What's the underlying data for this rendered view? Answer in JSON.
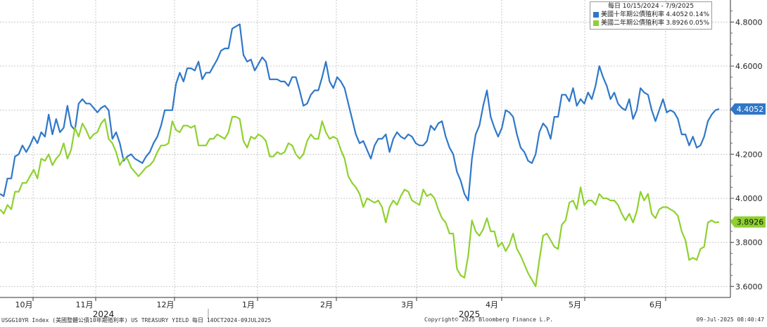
{
  "chart_data": {
    "type": "line",
    "legend_header": "每日 10/15/2024 - 7/9/2025",
    "x_axis": {
      "months": [
        "10月",
        "11月",
        "12月",
        "1月",
        "2月",
        "3月",
        "4月",
        "5月",
        "6月"
      ],
      "years": [
        "2024",
        "2025"
      ]
    },
    "y_axis": {
      "ticks": [
        "3.6000",
        "3.8000",
        "4.0000",
        "4.2000",
        "4.4000",
        "4.6000",
        "4.8000"
      ],
      "ylim": [
        3.55,
        4.9
      ]
    },
    "grid": true,
    "legend_position": "top-right",
    "series": [
      {
        "name": "美國十年期公債殖利率",
        "color": "#2f78c8",
        "last_value": "4.4052",
        "change": "0.14%",
        "values": [
          4.02,
          4.01,
          4.09,
          4.09,
          4.19,
          4.2,
          4.24,
          4.21,
          4.24,
          4.28,
          4.25,
          4.3,
          4.28,
          4.38,
          4.29,
          4.36,
          4.3,
          4.32,
          4.42,
          4.33,
          4.31,
          4.43,
          4.45,
          4.43,
          4.43,
          4.41,
          4.39,
          4.41,
          4.42,
          4.4,
          4.27,
          4.3,
          4.25,
          4.17,
          4.19,
          4.2,
          4.18,
          4.17,
          4.16,
          4.19,
          4.21,
          4.25,
          4.28,
          4.33,
          4.4,
          4.4,
          4.4,
          4.52,
          4.57,
          4.53,
          4.59,
          4.59,
          4.58,
          4.62,
          4.54,
          4.57,
          4.57,
          4.6,
          4.63,
          4.67,
          4.68,
          4.68,
          4.77,
          4.78,
          4.79,
          4.65,
          4.62,
          4.63,
          4.58,
          4.61,
          4.64,
          4.62,
          4.54,
          4.54,
          4.54,
          4.53,
          4.53,
          4.51,
          4.55,
          4.55,
          4.49,
          4.42,
          4.43,
          4.47,
          4.49,
          4.49,
          4.55,
          4.62,
          4.53,
          4.5,
          4.55,
          4.53,
          4.5,
          4.43,
          4.36,
          4.29,
          4.25,
          4.26,
          4.22,
          4.18,
          4.24,
          4.27,
          4.27,
          4.29,
          4.21,
          4.27,
          4.3,
          4.28,
          4.27,
          4.29,
          4.28,
          4.25,
          4.24,
          4.24,
          4.26,
          4.33,
          4.31,
          4.34,
          4.35,
          4.28,
          4.23,
          4.2,
          4.12,
          4.08,
          4.02,
          3.99,
          4.18,
          4.29,
          4.33,
          4.42,
          4.49,
          4.37,
          4.32,
          4.28,
          4.32,
          4.4,
          4.39,
          4.37,
          4.29,
          4.23,
          4.21,
          4.17,
          4.16,
          4.2,
          4.3,
          4.34,
          4.32,
          4.27,
          4.37,
          4.37,
          4.47,
          4.47,
          4.44,
          4.5,
          4.42,
          4.45,
          4.43,
          4.48,
          4.45,
          4.51,
          4.6,
          4.55,
          4.51,
          4.45,
          4.48,
          4.43,
          4.41,
          4.4,
          4.45,
          4.36,
          4.4,
          4.5,
          4.48,
          4.47,
          4.4,
          4.35,
          4.4,
          4.45,
          4.39,
          4.4,
          4.39,
          4.36,
          4.29,
          4.29,
          4.24,
          4.28,
          4.23,
          4.24,
          4.28,
          4.35,
          4.38,
          4.4,
          4.4052
        ]
      },
      {
        "name": "美國二年期公債殖利率",
        "color": "#8fd130",
        "last_value": "3.8926",
        "change": "0.05%",
        "values": [
          3.95,
          3.93,
          3.97,
          3.95,
          4.03,
          4.03,
          4.07,
          4.07,
          4.1,
          4.13,
          4.09,
          4.18,
          4.17,
          4.2,
          4.15,
          4.18,
          4.2,
          4.25,
          4.18,
          4.22,
          4.32,
          4.28,
          4.34,
          4.31,
          4.27,
          4.29,
          4.3,
          4.34,
          4.36,
          4.27,
          4.25,
          4.21,
          4.15,
          4.18,
          4.18,
          4.14,
          4.12,
          4.1,
          4.12,
          4.14,
          4.15,
          4.17,
          4.21,
          4.24,
          4.24,
          4.25,
          4.35,
          4.31,
          4.3,
          4.33,
          4.33,
          4.32,
          4.33,
          4.24,
          4.24,
          4.24,
          4.27,
          4.27,
          4.29,
          4.28,
          4.27,
          4.3,
          4.37,
          4.37,
          4.36,
          4.26,
          4.23,
          4.28,
          4.27,
          4.29,
          4.28,
          4.26,
          4.19,
          4.19,
          4.21,
          4.2,
          4.21,
          4.25,
          4.24,
          4.2,
          4.18,
          4.2,
          4.26,
          4.29,
          4.27,
          4.27,
          4.35,
          4.3,
          4.27,
          4.28,
          4.27,
          4.22,
          4.18,
          4.1,
          4.07,
          4.05,
          4.02,
          3.96,
          4.0,
          3.99,
          3.98,
          3.99,
          3.96,
          3.89,
          3.96,
          3.99,
          3.97,
          4.01,
          4.04,
          4.03,
          3.99,
          3.98,
          3.97,
          4.04,
          4.01,
          4.02,
          4.0,
          3.95,
          3.91,
          3.89,
          3.84,
          3.84,
          3.68,
          3.65,
          3.64,
          3.74,
          3.9,
          3.85,
          3.83,
          3.86,
          3.91,
          3.85,
          3.85,
          3.78,
          3.8,
          3.76,
          3.79,
          3.84,
          3.77,
          3.74,
          3.7,
          3.66,
          3.63,
          3.6,
          3.72,
          3.83,
          3.84,
          3.81,
          3.78,
          3.77,
          3.88,
          3.9,
          3.98,
          3.99,
          3.95,
          4.05,
          3.97,
          3.99,
          3.99,
          3.97,
          4.02,
          4.0,
          4.0,
          3.99,
          3.99,
          3.97,
          3.93,
          3.9,
          3.93,
          3.89,
          3.94,
          4.03,
          3.99,
          4.02,
          3.93,
          3.91,
          3.95,
          3.96,
          3.96,
          3.95,
          3.94,
          3.92,
          3.85,
          3.81,
          3.72,
          3.73,
          3.72,
          3.77,
          3.78,
          3.89,
          3.9,
          3.89,
          3.8926
        ]
      }
    ]
  },
  "footer": {
    "left": "USGG10YR Index (美國整體公債10年期殖利率) US TREASURY YIELD  每日 14OCT2024-09JUL2025",
    "center": "Copyright© 2025 Bloomberg Finance L.P.",
    "right": "09-Jul-2025 08:40:47"
  }
}
